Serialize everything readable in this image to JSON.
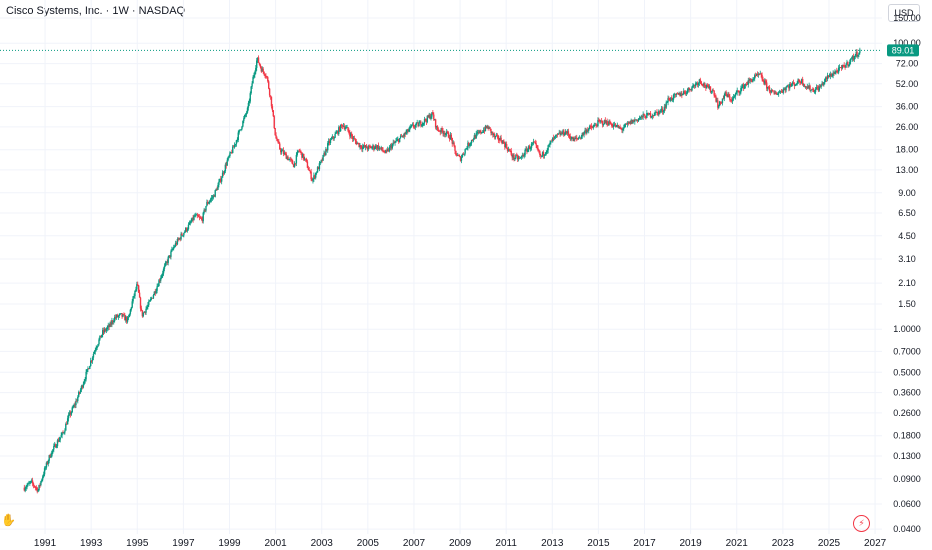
{
  "header": {
    "title": "Cisco Systems, Inc. · 1W · NASDAQ",
    "currency": "USD"
  },
  "colors": {
    "up": "#089981",
    "down": "#f23645",
    "grid": "#f0f3fa",
    "price_line": "#089981",
    "text": "#131722"
  },
  "icons": {
    "bolt": "lightning-bolt-icon",
    "handle": "crosshair-handle-icon"
  },
  "chart_data": {
    "type": "candlestick",
    "title": "Cisco Systems, Inc. · 1W · NASDAQ",
    "y_scale": "log",
    "ylim": [
      0.037,
      160
    ],
    "xlim": [
      1990.0,
      2027.3
    ],
    "y_ticks": [
      "150.00",
      "100.00",
      "72.00",
      "52.00",
      "36.00",
      "26.00",
      "18.00",
      "13.00",
      "9.00",
      "6.50",
      "4.50",
      "3.10",
      "2.10",
      "1.50",
      "1.0000",
      "0.7000",
      "0.5000",
      "0.3600",
      "0.2600",
      "0.1800",
      "0.1300",
      "0.0900",
      "0.0600",
      "0.0400"
    ],
    "x_ticks": [
      "1991",
      "1993",
      "1995",
      "1997",
      "1999",
      "2001",
      "2003",
      "2005",
      "2007",
      "2009",
      "2011",
      "2013",
      "2015",
      "2017",
      "2019",
      "2021",
      "2023",
      "2025",
      "2027"
    ],
    "last_price": 89.01,
    "last_price_label": "89.01",
    "grid": true,
    "series": [
      {
        "points": [
          [
            1990.1,
            0.078
          ],
          [
            1990.4,
            0.085
          ],
          [
            1990.7,
            0.075
          ],
          [
            1990.9,
            0.095
          ],
          [
            1991.2,
            0.13
          ],
          [
            1991.5,
            0.16
          ],
          [
            1991.8,
            0.19
          ],
          [
            1992.0,
            0.24
          ],
          [
            1992.3,
            0.3
          ],
          [
            1992.6,
            0.4
          ],
          [
            1992.9,
            0.55
          ],
          [
            1993.2,
            0.75
          ],
          [
            1993.5,
            0.95
          ],
          [
            1993.8,
            1.05
          ],
          [
            1994.0,
            1.2
          ],
          [
            1994.3,
            1.25
          ],
          [
            1994.6,
            1.15
          ],
          [
            1994.8,
            1.6
          ],
          [
            1995.0,
            2.05
          ],
          [
            1995.2,
            1.25
          ],
          [
            1995.5,
            1.5
          ],
          [
            1995.8,
            1.9
          ],
          [
            1996.0,
            2.3
          ],
          [
            1996.3,
            3.0
          ],
          [
            1996.6,
            3.8
          ],
          [
            1996.9,
            4.5
          ],
          [
            1997.2,
            5.2
          ],
          [
            1997.5,
            6.2
          ],
          [
            1997.8,
            5.8
          ],
          [
            1998.0,
            7.5
          ],
          [
            1998.3,
            8.5
          ],
          [
            1998.6,
            11.0
          ],
          [
            1998.9,
            15.0
          ],
          [
            1999.2,
            19.0
          ],
          [
            1999.5,
            26.0
          ],
          [
            1999.8,
            35.0
          ],
          [
            2000.0,
            55.0
          ],
          [
            2000.2,
            78.0
          ],
          [
            2000.4,
            65.0
          ],
          [
            2000.6,
            60.0
          ],
          [
            2000.8,
            40.0
          ],
          [
            2001.0,
            22.0
          ],
          [
            2001.2,
            18.0
          ],
          [
            2001.5,
            16.0
          ],
          [
            2001.8,
            14.0
          ],
          [
            2002.0,
            18.0
          ],
          [
            2002.3,
            15.0
          ],
          [
            2002.6,
            11.0
          ],
          [
            2002.8,
            13.0
          ],
          [
            2003.0,
            15.0
          ],
          [
            2003.3,
            20.0
          ],
          [
            2003.6,
            23.0
          ],
          [
            2003.9,
            27.0
          ],
          [
            2004.1,
            25.0
          ],
          [
            2004.4,
            21.0
          ],
          [
            2004.7,
            19.0
          ],
          [
            2005.0,
            18.5
          ],
          [
            2005.4,
            19.0
          ],
          [
            2005.8,
            17.0
          ],
          [
            2006.0,
            19.0
          ],
          [
            2006.3,
            21.0
          ],
          [
            2006.6,
            23.0
          ],
          [
            2006.9,
            26.0
          ],
          [
            2007.2,
            27.0
          ],
          [
            2007.5,
            29.0
          ],
          [
            2007.8,
            32.0
          ],
          [
            2008.0,
            25.0
          ],
          [
            2008.3,
            24.0
          ],
          [
            2008.6,
            22.0
          ],
          [
            2008.8,
            17.0
          ],
          [
            2009.0,
            15.5
          ],
          [
            2009.3,
            19.0
          ],
          [
            2009.6,
            22.0
          ],
          [
            2009.9,
            24.0
          ],
          [
            2010.2,
            26.0
          ],
          [
            2010.5,
            22.0
          ],
          [
            2010.8,
            21.0
          ],
          [
            2011.0,
            19.0
          ],
          [
            2011.3,
            16.0
          ],
          [
            2011.6,
            15.5
          ],
          [
            2011.9,
            18.0
          ],
          [
            2012.2,
            20.0
          ],
          [
            2012.5,
            16.0
          ],
          [
            2012.8,
            18.5
          ],
          [
            2013.0,
            21.0
          ],
          [
            2013.3,
            23.0
          ],
          [
            2013.6,
            24.0
          ],
          [
            2013.9,
            21.0
          ],
          [
            2014.2,
            22.0
          ],
          [
            2014.5,
            25.0
          ],
          [
            2014.8,
            26.0
          ],
          [
            2015.0,
            28.0
          ],
          [
            2015.4,
            28.0
          ],
          [
            2015.8,
            26.0
          ],
          [
            2016.0,
            25.0
          ],
          [
            2016.4,
            28.0
          ],
          [
            2016.8,
            30.0
          ],
          [
            2017.0,
            31.0
          ],
          [
            2017.4,
            32.0
          ],
          [
            2017.8,
            34.0
          ],
          [
            2018.0,
            40.0
          ],
          [
            2018.4,
            43.0
          ],
          [
            2018.8,
            46.0
          ],
          [
            2019.1,
            50.0
          ],
          [
            2019.4,
            55.0
          ],
          [
            2019.7,
            49.0
          ],
          [
            2020.0,
            46.0
          ],
          [
            2020.2,
            36.0
          ],
          [
            2020.5,
            44.0
          ],
          [
            2020.8,
            40.0
          ],
          [
            2021.0,
            45.0
          ],
          [
            2021.4,
            52.0
          ],
          [
            2021.8,
            58.0
          ],
          [
            2022.0,
            60.0
          ],
          [
            2022.3,
            50.0
          ],
          [
            2022.6,
            44.0
          ],
          [
            2022.9,
            46.0
          ],
          [
            2023.2,
            50.0
          ],
          [
            2023.5,
            52.0
          ],
          [
            2023.8,
            55.0
          ],
          [
            2024.0,
            50.0
          ],
          [
            2024.3,
            47.0
          ],
          [
            2024.6,
            49.0
          ],
          [
            2024.9,
            57.0
          ],
          [
            2025.2,
            62.0
          ],
          [
            2025.5,
            66.0
          ],
          [
            2025.8,
            72.0
          ],
          [
            2026.0,
            78.0
          ],
          [
            2026.2,
            84.0
          ],
          [
            2026.35,
            89.01
          ]
        ]
      }
    ]
  }
}
